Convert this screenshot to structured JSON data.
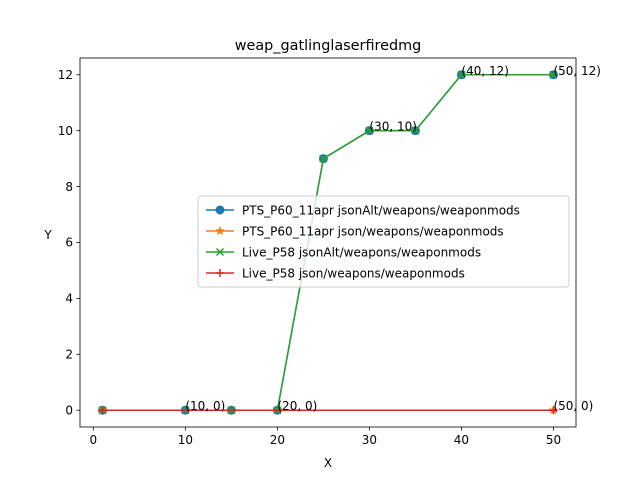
{
  "chart_data": {
    "type": "line",
    "title": "weap_gatlinglaserfiredmg",
    "xlabel": "X",
    "ylabel": "Y",
    "xlim": [
      -1.45,
      52.45
    ],
    "ylim": [
      -0.6,
      12.6
    ],
    "xticks": [
      0,
      10,
      20,
      30,
      40,
      50
    ],
    "yticks": [
      0,
      2,
      4,
      6,
      8,
      10,
      12
    ],
    "grid": false,
    "legend_position": "center-right",
    "series": [
      {
        "name": "PTS_P60_11apr jsonAlt/weapons/weaponmods",
        "color": "#1f77b4",
        "marker": "circle",
        "x": [
          1,
          10,
          15,
          20,
          25,
          30,
          35,
          40,
          50
        ],
        "y": [
          0,
          0,
          0,
          0,
          9,
          10,
          10,
          12,
          12
        ]
      },
      {
        "name": "PTS_P60_11apr json/weapons/weaponmods",
        "color": "#ff7f0e",
        "marker": "star",
        "x": [
          1,
          50
        ],
        "y": [
          0,
          0
        ]
      },
      {
        "name": "Live_P58 jsonAlt/weapons/weaponmods",
        "color": "#2ca02c",
        "marker": "x",
        "x": [
          1,
          10,
          15,
          20,
          25,
          30,
          35,
          40,
          50
        ],
        "y": [
          0,
          0,
          0,
          0,
          9,
          10,
          10,
          12,
          12
        ]
      },
      {
        "name": "Live_P58 json/weapons/weaponmods",
        "color": "#d62728",
        "marker": "plus",
        "x": [
          1,
          50
        ],
        "y": [
          0,
          0
        ]
      }
    ],
    "annotations": [
      {
        "text": "(10, 0)",
        "x": 10,
        "y": 0
      },
      {
        "text": "(20, 0)",
        "x": 20,
        "y": 0
      },
      {
        "text": "(30, 10)",
        "x": 30,
        "y": 10
      },
      {
        "text": "(40, 12)",
        "x": 40,
        "y": 12
      },
      {
        "text": "(50, 12)",
        "x": 50,
        "y": 12
      },
      {
        "text": "(50, 0)",
        "x": 50,
        "y": 0
      }
    ]
  }
}
